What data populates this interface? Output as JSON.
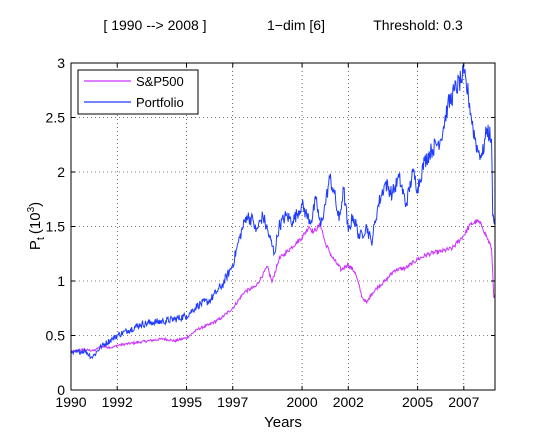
{
  "chart_data": {
    "type": "line",
    "title_parts": [
      "[ 1990 --> 2008 ]",
      "1−dim [6]",
      "Threshold: 0.3"
    ],
    "xlabel": "Years",
    "ylabel": "P",
    "ylabel_sub": "t",
    "ylabel_unit_open": "(10",
    "ylabel_unit_exp": "3",
    "ylabel_unit_close": ")",
    "xlim": [
      1990,
      2008.35
    ],
    "ylim": [
      0,
      3
    ],
    "xtick_values": [
      1990,
      1992,
      1995,
      1997,
      2000,
      2002,
      2005,
      2007
    ],
    "xtick_labels": [
      "1990",
      "1992",
      "1995",
      "1997",
      "2000",
      "2002",
      "2005",
      "2007"
    ],
    "ytick_values": [
      0,
      0.5,
      1,
      1.5,
      2,
      2.5,
      3
    ],
    "ytick_labels": [
      "0",
      "0.5",
      "1",
      "1.5",
      "2",
      "2.5",
      "3"
    ],
    "grid": true,
    "legend_position": "top-left",
    "series": [
      {
        "name": "S&P500",
        "color": "#cc33ff",
        "x": [
          1990.0,
          1990.5,
          1991.0,
          1991.3,
          1991.8,
          1992.0,
          1993.0,
          1994.0,
          1994.5,
          1995.0,
          1995.5,
          1996.0,
          1996.5,
          1997.0,
          1997.5,
          1998.0,
          1998.5,
          1998.7,
          1999.0,
          1999.5,
          2000.0,
          2000.3,
          2000.5,
          2000.8,
          2001.0,
          2001.3,
          2001.7,
          2001.9,
          2002.0,
          2002.3,
          2002.6,
          2002.8,
          2003.0,
          2003.3,
          2003.6,
          2004.0,
          2004.5,
          2005.0,
          2005.5,
          2006.0,
          2006.5,
          2007.0,
          2007.3,
          2007.6,
          2007.8,
          2008.0,
          2008.2,
          2008.3,
          2008.35
        ],
        "y": [
          0.35,
          0.37,
          0.36,
          0.4,
          0.39,
          0.41,
          0.44,
          0.47,
          0.45,
          0.48,
          0.56,
          0.6,
          0.66,
          0.75,
          0.9,
          0.95,
          1.13,
          0.99,
          1.2,
          1.3,
          1.4,
          1.5,
          1.45,
          1.52,
          1.35,
          1.22,
          1.1,
          1.14,
          1.15,
          1.08,
          0.85,
          0.8,
          0.88,
          0.95,
          1.0,
          1.1,
          1.12,
          1.2,
          1.25,
          1.27,
          1.3,
          1.42,
          1.52,
          1.55,
          1.5,
          1.4,
          1.3,
          0.85,
          0.88
        ]
      },
      {
        "name": "Portfolio",
        "color": "#1f3bff",
        "x": [
          1990.0,
          1990.3,
          1990.6,
          1990.9,
          1991.0,
          1991.3,
          1991.8,
          1992.0,
          1992.5,
          1993.0,
          1993.5,
          1994.0,
          1994.5,
          1995.0,
          1995.5,
          1996.0,
          1996.3,
          1996.6,
          1997.0,
          1997.3,
          1997.6,
          1997.9,
          1998.0,
          1998.3,
          1998.6,
          1998.8,
          1999.0,
          1999.3,
          1999.6,
          2000.0,
          2000.2,
          2000.4,
          2000.6,
          2000.8,
          2001.0,
          2001.2,
          2001.4,
          2001.6,
          2001.8,
          2002.0,
          2002.2,
          2002.5,
          2002.8,
          2003.0,
          2003.3,
          2003.6,
          2003.9,
          2004.2,
          2004.5,
          2004.8,
          2005.0,
          2005.3,
          2005.6,
          2006.0,
          2006.3,
          2006.6,
          2006.9,
          2007.0,
          2007.2,
          2007.4,
          2007.6,
          2007.8,
          2008.0,
          2008.2,
          2008.25,
          2008.3,
          2008.35
        ],
        "y": [
          0.33,
          0.35,
          0.36,
          0.3,
          0.32,
          0.4,
          0.47,
          0.5,
          0.55,
          0.6,
          0.62,
          0.63,
          0.65,
          0.68,
          0.78,
          0.82,
          0.9,
          0.98,
          1.15,
          1.4,
          1.6,
          1.55,
          1.45,
          1.6,
          1.4,
          1.25,
          1.5,
          1.6,
          1.55,
          1.7,
          1.6,
          1.55,
          1.75,
          1.5,
          1.7,
          1.95,
          1.8,
          1.55,
          1.85,
          1.45,
          1.6,
          1.4,
          1.5,
          1.35,
          1.7,
          1.9,
          1.8,
          1.95,
          1.7,
          2.0,
          1.85,
          2.1,
          2.2,
          2.3,
          2.6,
          2.75,
          2.85,
          2.9,
          2.7,
          2.4,
          2.2,
          2.15,
          2.4,
          2.3,
          1.6,
          1.55,
          1.6
        ]
      }
    ]
  }
}
